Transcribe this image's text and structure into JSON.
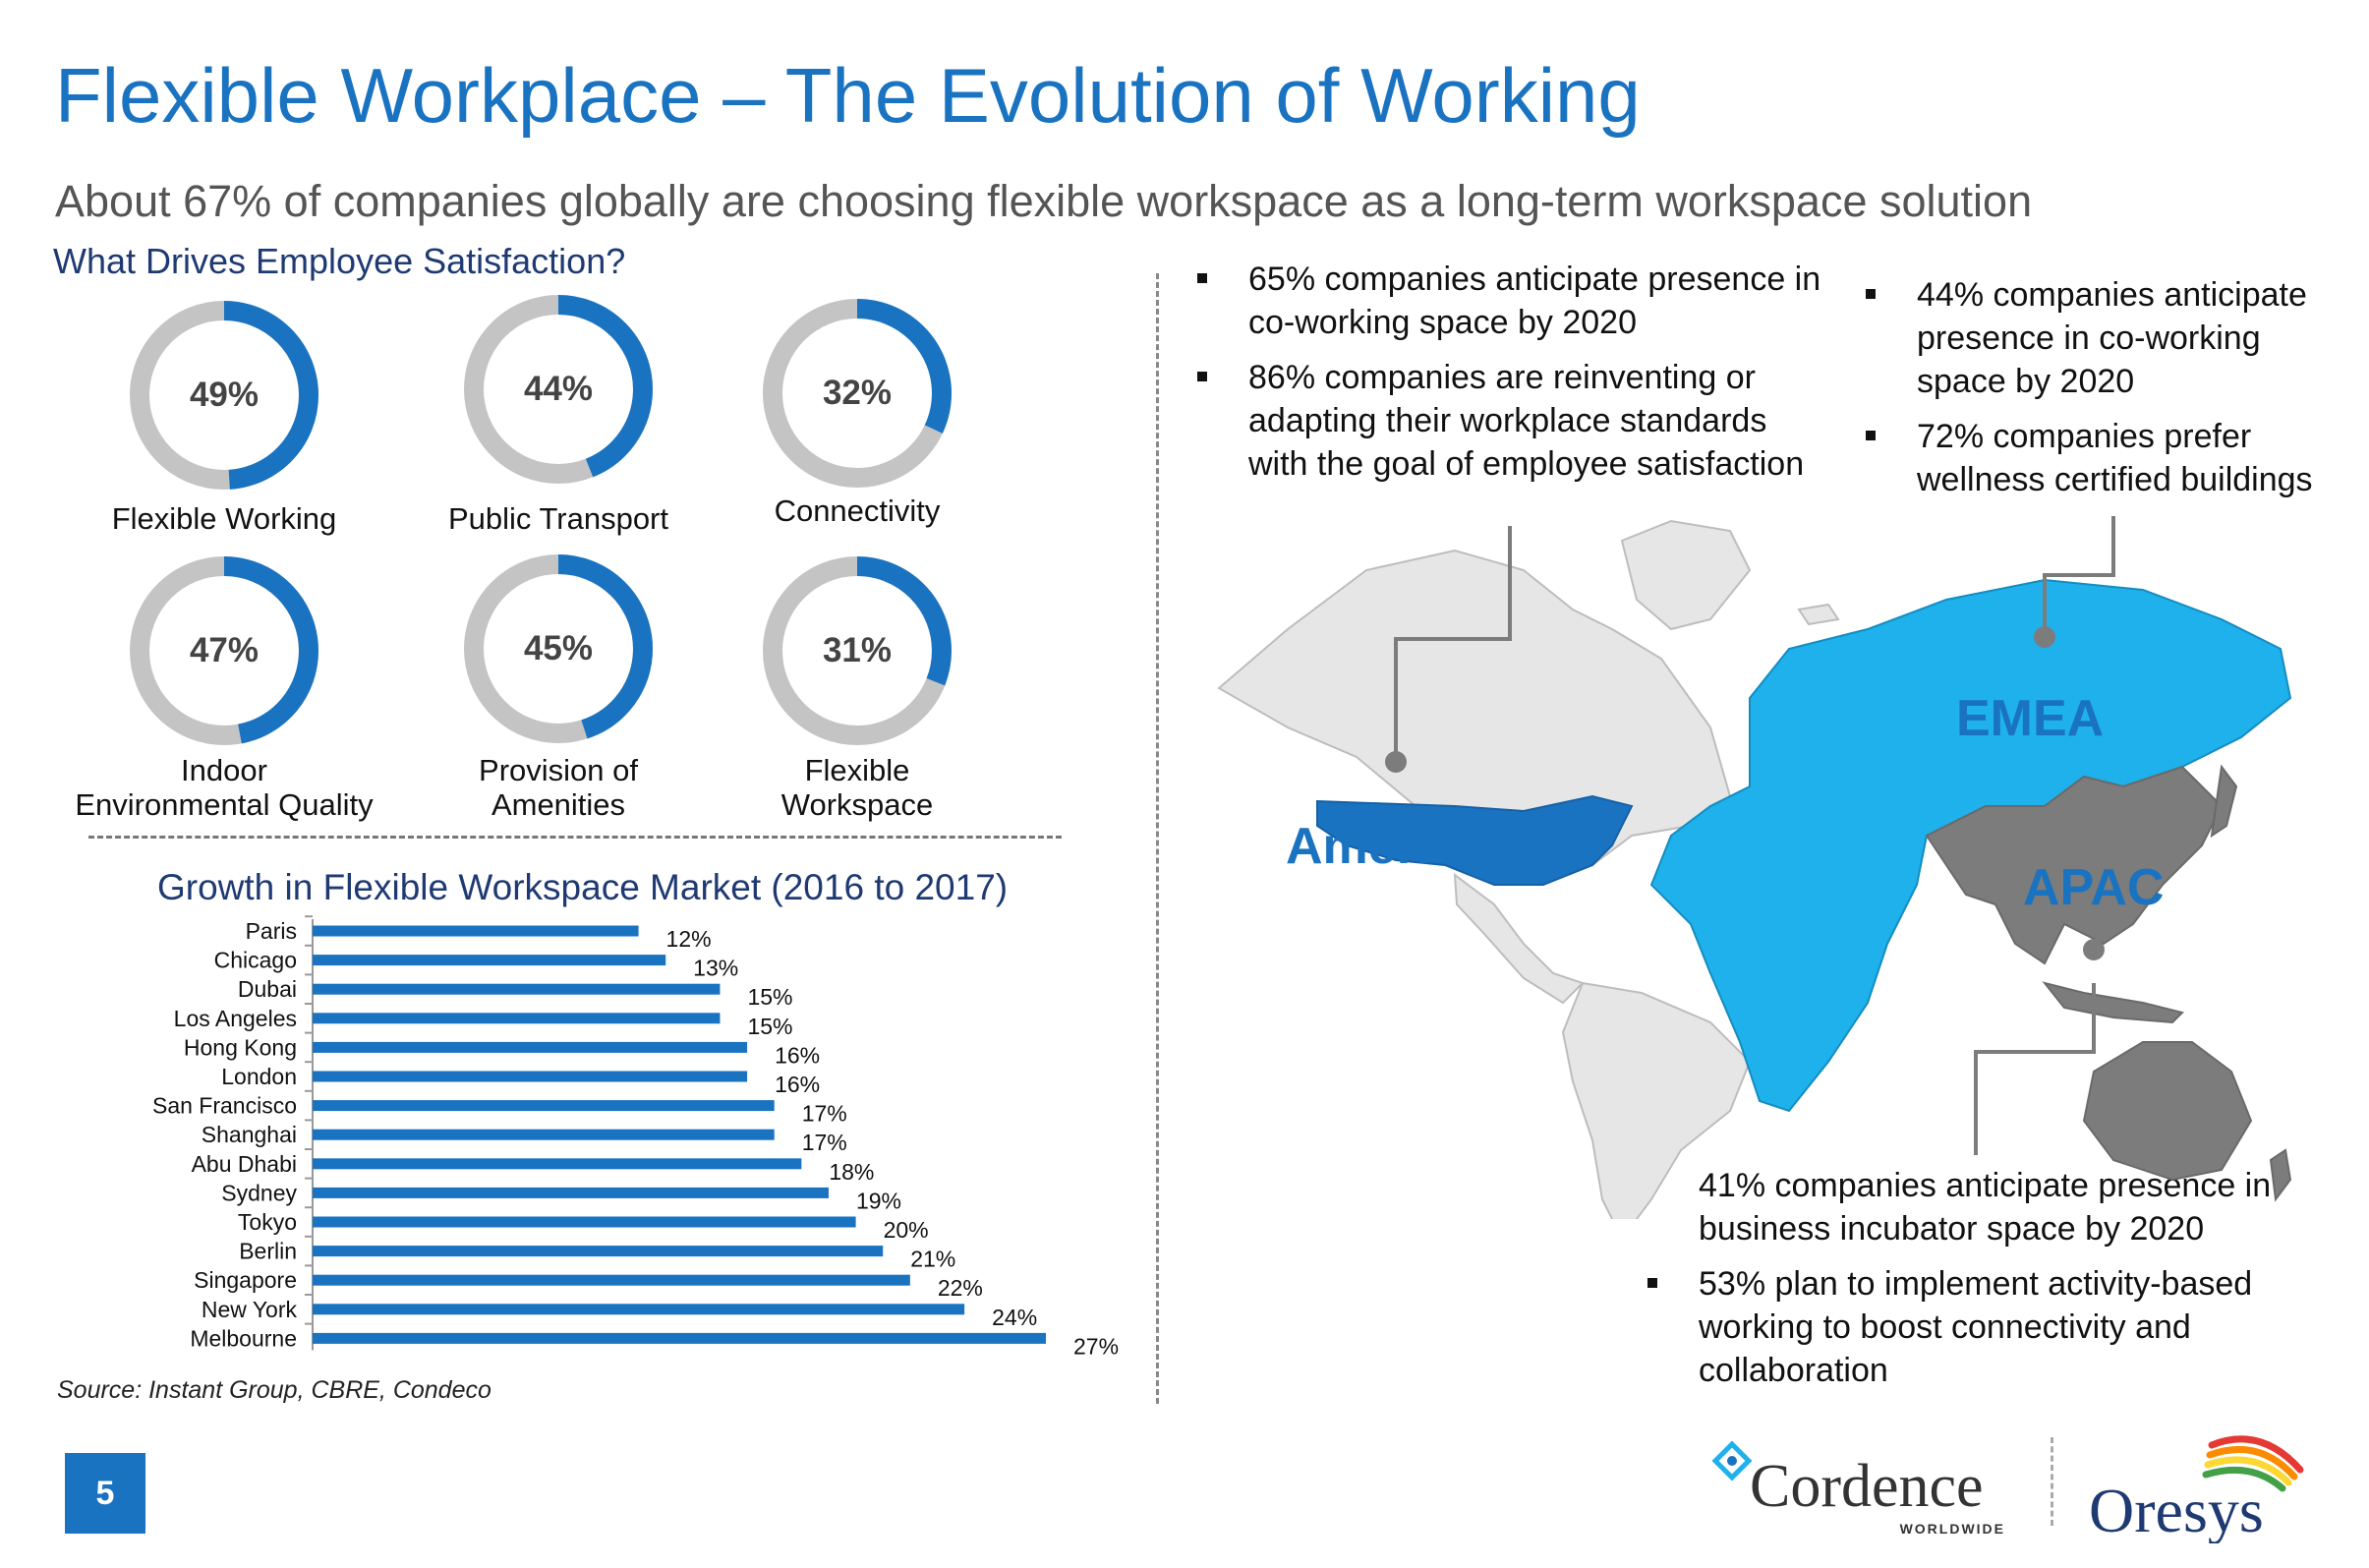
{
  "title": "Flexible Workplace – The Evolution of Working",
  "subtitle": "About 67% of companies globally are choosing flexible workspace as a long-term workspace solution",
  "satisfaction": {
    "heading": "What Drives Employee Satisfaction?",
    "donuts": [
      {
        "value": 49,
        "value_label": "49%",
        "label_lines": [
          "Flexible Working"
        ]
      },
      {
        "value": 44,
        "value_label": "44%",
        "label_lines": [
          "Public Transport"
        ]
      },
      {
        "value": 32,
        "value_label": "32%",
        "label_lines": [
          "Connectivity"
        ]
      },
      {
        "value": 47,
        "value_label": "47%",
        "label_lines": [
          "Indoor",
          "Environmental Quality"
        ]
      },
      {
        "value": 45,
        "value_label": "45%",
        "label_lines": [
          "Provision of",
          "Amenities"
        ]
      },
      {
        "value": 31,
        "value_label": "31%",
        "label_lines": [
          "Flexible",
          "Workspace"
        ]
      }
    ]
  },
  "chart_data": {
    "type": "bar",
    "orientation": "horizontal",
    "title": "Growth in Flexible Workspace Market (2016 to 2017)",
    "categories": [
      "Paris",
      "Chicago",
      "Dubai",
      "Los Angeles",
      "Hong Kong",
      "London",
      "San Francisco",
      "Shanghai",
      "Abu Dhabi",
      "Sydney",
      "Tokyo",
      "Berlin",
      "Singapore",
      "New York",
      "Melbourne"
    ],
    "values": [
      12,
      13,
      15,
      15,
      16,
      16,
      17,
      17,
      18,
      19,
      20,
      21,
      22,
      24,
      27
    ],
    "data_labels": [
      "12%",
      "13%",
      "15%",
      "15%",
      "16%",
      "16%",
      "17%",
      "17%",
      "18%",
      "19%",
      "20%",
      "21%",
      "22%",
      "24%",
      "27%"
    ],
    "xlim": [
      0,
      27
    ],
    "grid": false,
    "color": "#1a73c0"
  },
  "source": "Source: Instant Group, CBRE, Condeco",
  "regions": {
    "americas": {
      "label": "Americas",
      "bullets": [
        "65% companies anticipate presence in co-working space by 2020",
        "86% companies are reinventing or adapting their workplace standards with the goal of employee satisfaction"
      ]
    },
    "emea": {
      "label": "EMEA",
      "bullets": [
        "44% companies anticipate presence in co-working space by 2020",
        "72% companies prefer wellness certified buildings"
      ]
    },
    "apac": {
      "label": "APAC",
      "bullets": [
        "41% companies anticipate presence in business incubator space by 2020",
        "53% plan to implement activity-based working to boost connectivity and collaboration"
      ]
    }
  },
  "colors": {
    "accent": "#1a73c0",
    "donut_track": "#c4c4c4",
    "emea": "#1eb1ec",
    "americas": "#1a73c0",
    "apac": "#7c7c7c",
    "map_base": "#e6e6e6"
  },
  "page_number": "5",
  "logos": {
    "cordence": {
      "name": "Cordence",
      "sub": "WORLDWIDE"
    },
    "oresys": {
      "name": "Oresys"
    }
  }
}
